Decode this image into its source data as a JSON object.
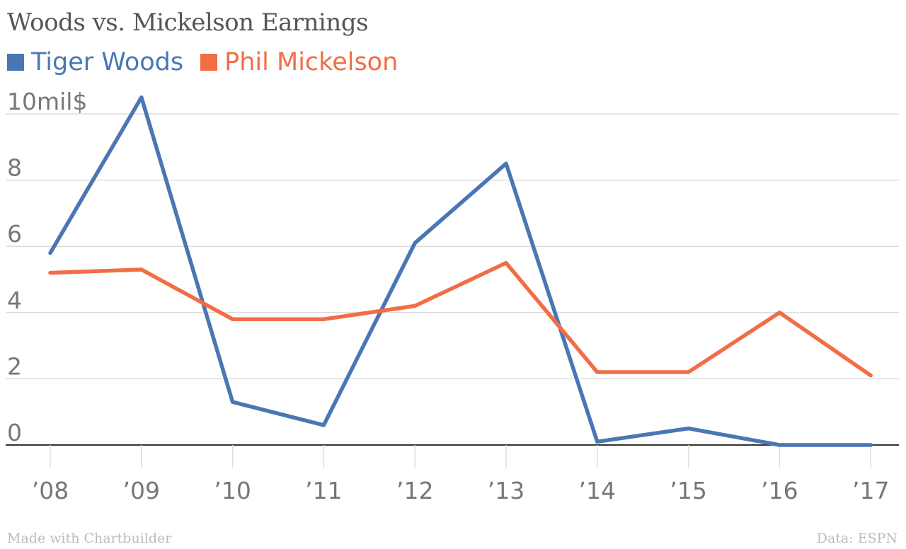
{
  "chart_data": {
    "type": "line",
    "title": "Woods vs. Mickelson Earnings",
    "categories": [
      " 08",
      " 09",
      " 10",
      " 11",
      " 12",
      " 13",
      " 14",
      " 15",
      " 16",
      " 17"
    ],
    "x_tick_labels": [
      "’08",
      "’09",
      "’10",
      "’11",
      "’12",
      "’13",
      "’14",
      "’15",
      "’16",
      "’17"
    ],
    "y_tick_labels": [
      "0",
      "2",
      "4",
      "6",
      "8",
      "10mil$"
    ],
    "y_ticks": [
      0,
      2,
      4,
      6,
      8,
      10
    ],
    "ylim": [
      0,
      10.5
    ],
    "grid": true,
    "legend_position": "top-left",
    "series": [
      {
        "name": "Tiger Woods",
        "color": "#4a77b4",
        "values": [
          5.8,
          10.5,
          1.3,
          0.6,
          6.1,
          8.5,
          0.1,
          0.5,
          0.0,
          0.0
        ]
      },
      {
        "name": "Phil Mickelson",
        "color": "#f26d46",
        "values": [
          5.2,
          5.3,
          3.8,
          3.8,
          4.2,
          5.5,
          2.2,
          2.2,
          4.0,
          2.1
        ]
      }
    ],
    "footer_left": "Made with Chartbuilder",
    "footer_right": "Data: ESPN"
  }
}
